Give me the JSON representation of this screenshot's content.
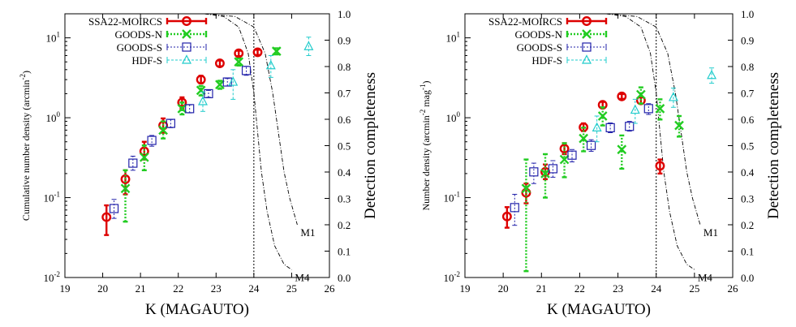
{
  "chart_data": [
    {
      "type": "scatter",
      "xlabel": "K (MAGAUTO)",
      "ylabel": "Cumulative number density (arcmin",
      "ylabel_sup": "-2",
      "ylabel_end": ")",
      "y2label": "Detection completeness",
      "xlim": [
        19,
        26
      ],
      "ylim": [
        0.01,
        20
      ],
      "ylog": true,
      "y2lim": [
        0,
        1
      ],
      "xticks": [
        "19",
        "20",
        "21",
        "22",
        "23",
        "24",
        "25",
        "26"
      ],
      "yticks": [
        {
          "base": "10",
          "exp": "-2",
          "v": 0.01
        },
        {
          "base": "10",
          "exp": "-1",
          "v": 0.1
        },
        {
          "base": "10",
          "exp": "0",
          "v": 1
        },
        {
          "base": "10",
          "exp": "1",
          "v": 10
        }
      ],
      "y2ticks": [
        "0.0",
        "0.1",
        "0.2",
        "0.3",
        "0.4",
        "0.5",
        "0.6",
        "0.7",
        "0.8",
        "0.9",
        "1.0"
      ],
      "legend_position": "top-left",
      "series": [
        {
          "name": "SSA22-MOIRCS",
          "marker": "circle",
          "color": "#dd0000",
          "points": [
            {
              "x": 20.1,
              "y": 0.057,
              "lo": 0.034,
              "hi": 0.08
            },
            {
              "x": 20.6,
              "y": 0.17,
              "lo": 0.11,
              "hi": 0.22
            },
            {
              "x": 21.1,
              "y": 0.38,
              "lo": 0.3,
              "hi": 0.5
            },
            {
              "x": 21.6,
              "y": 0.8,
              "lo": 0.65,
              "hi": 0.98
            },
            {
              "x": 22.1,
              "y": 1.55,
              "lo": 1.3,
              "hi": 1.8
            },
            {
              "x": 22.6,
              "y": 3.0,
              "lo": 2.7,
              "hi": 3.35
            },
            {
              "x": 23.1,
              "y": 4.8,
              "lo": 4.4,
              "hi": 5.2
            },
            {
              "x": 23.6,
              "y": 6.4,
              "lo": 5.9,
              "hi": 6.9
            },
            {
              "x": 24.1,
              "y": 6.6,
              "lo": 6.1,
              "hi": 7.1
            }
          ]
        },
        {
          "name": "GOODS-N",
          "marker": "x",
          "color": "#22cc22",
          "points": [
            {
              "x": 20.6,
              "y": 0.13,
              "lo": 0.05,
              "hi": 0.22
            },
            {
              "x": 21.1,
              "y": 0.32,
              "lo": 0.22,
              "hi": 0.45
            },
            {
              "x": 21.6,
              "y": 0.7,
              "lo": 0.55,
              "hi": 0.9
            },
            {
              "x": 22.1,
              "y": 1.3,
              "lo": 1.1,
              "hi": 1.55
            },
            {
              "x": 22.6,
              "y": 2.2,
              "lo": 1.9,
              "hi": 2.5
            },
            {
              "x": 23.1,
              "y": 2.6,
              "lo": 2.3,
              "hi": 2.9
            },
            {
              "x": 23.6,
              "y": 5.0,
              "lo": 4.5,
              "hi": 5.5
            },
            {
              "x": 24.6,
              "y": 6.8,
              "lo": 6.2,
              "hi": 7.4
            }
          ]
        },
        {
          "name": "GOODS-S",
          "marker": "square",
          "color": "#2222aa",
          "points": [
            {
              "x": 20.3,
              "y": 0.073,
              "lo": 0.055,
              "hi": 0.095
            },
            {
              "x": 20.8,
              "y": 0.27,
              "lo": 0.22,
              "hi": 0.33
            },
            {
              "x": 21.3,
              "y": 0.52,
              "lo": 0.44,
              "hi": 0.6
            },
            {
              "x": 21.8,
              "y": 0.85,
              "lo": 0.75,
              "hi": 0.95
            },
            {
              "x": 22.3,
              "y": 1.3,
              "lo": 1.15,
              "hi": 1.45
            },
            {
              "x": 22.8,
              "y": 2.0,
              "lo": 1.8,
              "hi": 2.2
            },
            {
              "x": 23.3,
              "y": 2.8,
              "lo": 2.5,
              "hi": 3.1
            },
            {
              "x": 23.8,
              "y": 3.9,
              "lo": 3.4,
              "hi": 4.4
            }
          ]
        },
        {
          "name": "HDF-S",
          "marker": "triangle",
          "color": "#22cccc",
          "points": [
            {
              "x": 22.65,
              "y": 1.6,
              "lo": 1.2,
              "hi": 2.1
            },
            {
              "x": 23.45,
              "y": 2.8,
              "lo": 1.7,
              "hi": 4.0
            },
            {
              "x": 24.45,
              "y": 4.5,
              "lo": 3.2,
              "hi": 6.0
            },
            {
              "x": 25.45,
              "y": 7.8,
              "lo": 6.0,
              "hi": 10.2
            }
          ]
        }
      ],
      "completeness": [
        {
          "name": "M1",
          "points": [
            [
              22.7,
              1.0
            ],
            [
              23.5,
              0.99
            ],
            [
              24.0,
              0.95
            ],
            [
              24.3,
              0.85
            ],
            [
              24.5,
              0.7
            ],
            [
              24.65,
              0.55
            ],
            [
              24.8,
              0.4
            ],
            [
              24.95,
              0.3
            ],
            [
              25.15,
              0.2
            ]
          ]
        },
        {
          "name": "M4",
          "points": [
            [
              22.7,
              1.0
            ],
            [
              23.2,
              0.99
            ],
            [
              23.6,
              0.95
            ],
            [
              23.85,
              0.85
            ],
            [
              24.0,
              0.7
            ],
            [
              24.1,
              0.55
            ],
            [
              24.2,
              0.4
            ],
            [
              24.35,
              0.25
            ],
            [
              24.55,
              0.12
            ],
            [
              24.8,
              0.05
            ],
            [
              25.0,
              0.03
            ]
          ]
        }
      ],
      "vline_x": 24.0
    },
    {
      "type": "scatter",
      "xlabel": "K (MAGAUTO)",
      "ylabel": "Number density (arcmin",
      "ylabel_sup": "-2",
      "ylabel_mid": " mag",
      "ylabel_sup2": "-1",
      "ylabel_end": ")",
      "y2label": "Detection completeness",
      "xlim": [
        19,
        26
      ],
      "ylim": [
        0.01,
        20
      ],
      "ylog": true,
      "y2lim": [
        0,
        1
      ],
      "xticks": [
        "19",
        "20",
        "21",
        "22",
        "23",
        "24",
        "25",
        "26"
      ],
      "yticks": [
        {
          "base": "10",
          "exp": "-2",
          "v": 0.01
        },
        {
          "base": "10",
          "exp": "-1",
          "v": 0.1
        },
        {
          "base": "10",
          "exp": "0",
          "v": 1
        },
        {
          "base": "10",
          "exp": "1",
          "v": 10
        }
      ],
      "y2ticks": [
        "0.0",
        "0.1",
        "0.2",
        "0.3",
        "0.4",
        "0.5",
        "0.6",
        "0.7",
        "0.8",
        "0.9",
        "1.0"
      ],
      "legend_position": "top-left",
      "series": [
        {
          "name": "SSA22-MOIRCS",
          "marker": "circle",
          "color": "#dd0000",
          "points": [
            {
              "x": 20.1,
              "y": 0.058,
              "lo": 0.042,
              "hi": 0.076
            },
            {
              "x": 20.6,
              "y": 0.115,
              "lo": 0.085,
              "hi": 0.15
            },
            {
              "x": 21.1,
              "y": 0.21,
              "lo": 0.17,
              "hi": 0.26
            },
            {
              "x": 21.6,
              "y": 0.41,
              "lo": 0.35,
              "hi": 0.48
            },
            {
              "x": 22.1,
              "y": 0.76,
              "lo": 0.68,
              "hi": 0.85
            },
            {
              "x": 22.6,
              "y": 1.45,
              "lo": 1.33,
              "hi": 1.58
            },
            {
              "x": 23.1,
              "y": 1.85,
              "lo": 1.72,
              "hi": 1.98
            },
            {
              "x": 23.6,
              "y": 1.65,
              "lo": 1.5,
              "hi": 1.8
            },
            {
              "x": 24.1,
              "y": 0.25,
              "lo": 0.2,
              "hi": 0.3
            }
          ]
        },
        {
          "name": "GOODS-N",
          "marker": "x",
          "color": "#22cc22",
          "points": [
            {
              "x": 20.6,
              "y": 0.13,
              "lo": 0.012,
              "hi": 0.3
            },
            {
              "x": 21.1,
              "y": 0.2,
              "lo": 0.1,
              "hi": 0.35
            },
            {
              "x": 21.6,
              "y": 0.3,
              "lo": 0.18,
              "hi": 0.48
            },
            {
              "x": 22.1,
              "y": 0.55,
              "lo": 0.38,
              "hi": 0.75
            },
            {
              "x": 22.6,
              "y": 1.05,
              "lo": 0.8,
              "hi": 1.35
            },
            {
              "x": 23.1,
              "y": 0.4,
              "lo": 0.23,
              "hi": 0.6
            },
            {
              "x": 23.6,
              "y": 1.95,
              "lo": 1.5,
              "hi": 2.4
            },
            {
              "x": 24.1,
              "y": 1.3,
              "lo": 0.95,
              "hi": 1.7
            },
            {
              "x": 24.6,
              "y": 0.8,
              "lo": 0.58,
              "hi": 1.05
            }
          ]
        },
        {
          "name": "GOODS-S",
          "marker": "square",
          "color": "#2222aa",
          "points": [
            {
              "x": 20.3,
              "y": 0.075,
              "lo": 0.045,
              "hi": 0.11
            },
            {
              "x": 20.8,
              "y": 0.21,
              "lo": 0.15,
              "hi": 0.27
            },
            {
              "x": 21.3,
              "y": 0.23,
              "lo": 0.18,
              "hi": 0.29
            },
            {
              "x": 21.8,
              "y": 0.34,
              "lo": 0.28,
              "hi": 0.4
            },
            {
              "x": 22.3,
              "y": 0.45,
              "lo": 0.38,
              "hi": 0.53
            },
            {
              "x": 22.8,
              "y": 0.75,
              "lo": 0.65,
              "hi": 0.86
            },
            {
              "x": 23.3,
              "y": 0.78,
              "lo": 0.68,
              "hi": 0.9
            },
            {
              "x": 23.8,
              "y": 1.3,
              "lo": 1.1,
              "hi": 1.5
            }
          ]
        },
        {
          "name": "HDF-S",
          "marker": "triangle",
          "color": "#22cccc",
          "points": [
            {
              "x": 22.45,
              "y": 0.75,
              "lo": 0.5,
              "hi": 1.05
            },
            {
              "x": 23.45,
              "y": 1.25,
              "lo": 0.85,
              "hi": 1.7
            },
            {
              "x": 24.45,
              "y": 1.8,
              "lo": 1.35,
              "hi": 2.35
            },
            {
              "x": 25.45,
              "y": 3.4,
              "lo": 2.7,
              "hi": 4.2
            }
          ]
        }
      ],
      "completeness": [
        {
          "name": "M1",
          "points": [
            [
              22.7,
              1.0
            ],
            [
              23.5,
              0.99
            ],
            [
              24.0,
              0.95
            ],
            [
              24.3,
              0.85
            ],
            [
              24.5,
              0.7
            ],
            [
              24.65,
              0.55
            ],
            [
              24.8,
              0.4
            ],
            [
              24.95,
              0.3
            ],
            [
              25.15,
              0.2
            ]
          ]
        },
        {
          "name": "M4",
          "points": [
            [
              22.7,
              1.0
            ],
            [
              23.2,
              0.99
            ],
            [
              23.6,
              0.95
            ],
            [
              23.85,
              0.85
            ],
            [
              24.0,
              0.7
            ],
            [
              24.1,
              0.55
            ],
            [
              24.2,
              0.4
            ],
            [
              24.35,
              0.25
            ],
            [
              24.55,
              0.12
            ],
            [
              24.8,
              0.05
            ],
            [
              25.0,
              0.03
            ]
          ]
        }
      ],
      "vline_x": 24.0
    }
  ]
}
